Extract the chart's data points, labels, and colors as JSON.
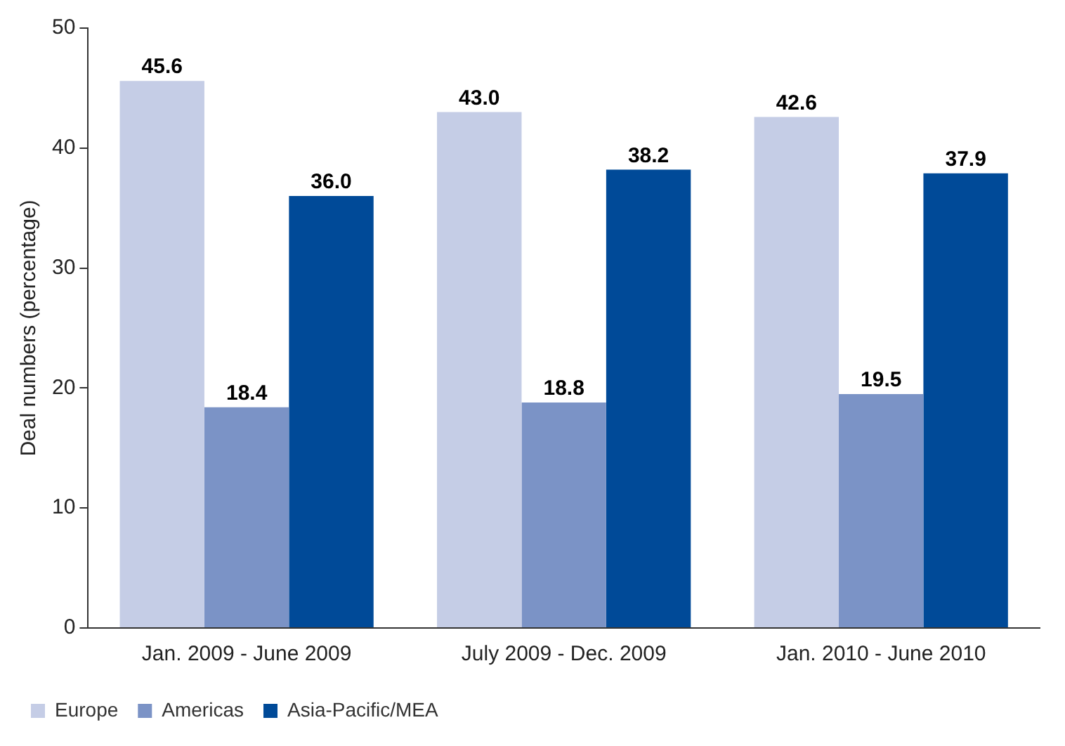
{
  "chart_data": {
    "type": "bar",
    "ylabel": "Deal numbers (percentage)",
    "categories": [
      "Jan. 2009 - June 2009",
      "July 2009 - Dec. 2009",
      "Jan. 2010 - June 2010"
    ],
    "series": [
      {
        "name": "Europe",
        "color": "#c5cde6",
        "values": [
          45.6,
          43.0,
          42.6
        ],
        "value_labels": [
          "45.6",
          "43.0",
          "42.6"
        ]
      },
      {
        "name": "Americas",
        "color": "#7b93c6",
        "values": [
          18.4,
          18.8,
          19.5
        ],
        "value_labels": [
          "18.4",
          "18.8",
          "19.5"
        ]
      },
      {
        "name": "Asia-Pacific/MEA",
        "color": "#004a98",
        "values": [
          36.0,
          38.2,
          37.9
        ],
        "value_labels": [
          "36.0",
          "38.2",
          "37.9"
        ]
      }
    ],
    "ylim": [
      0,
      50
    ],
    "yticks": [
      0,
      10,
      20,
      30,
      40,
      50
    ],
    "grid": false,
    "legend": "bottom left"
  }
}
